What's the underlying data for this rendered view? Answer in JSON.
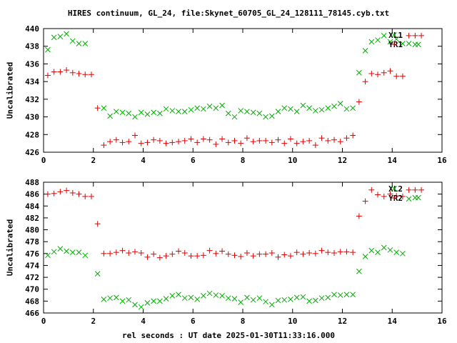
{
  "title": "HIRES continuum, GL_24, file:Skynet_60705_GL_24_128111_78145.cyb.txt",
  "xlabel": "rel seconds : UT date 2025-01-30T11:33:16.000",
  "colors": {
    "red": "#e00000",
    "green": "#00b000",
    "axis": "#000000"
  },
  "chart_data": [
    {
      "type": "scatter",
      "title": "HIRES continuum, GL_24, file:Skynet_60705_GL_24_128111_78145.cyb.txt",
      "xlabel": "",
      "ylabel": "Uncalibrated",
      "xlim": [
        0,
        16
      ],
      "ylim": [
        426,
        440
      ],
      "xticks": [
        0,
        2,
        4,
        6,
        8,
        10,
        12,
        14,
        16
      ],
      "yticks": [
        426,
        428,
        430,
        432,
        434,
        436,
        438,
        440
      ],
      "legend_position": "top-right",
      "series": [
        {
          "name": "XL1",
          "marker": "x",
          "color": "#00b000",
          "x": [
            0.17,
            0.42,
            0.67,
            0.92,
            1.17,
            1.42,
            1.67,
            2.42,
            2.67,
            2.92,
            3.17,
            3.42,
            3.67,
            3.92,
            4.17,
            4.42,
            4.67,
            4.92,
            5.17,
            5.42,
            5.67,
            5.92,
            6.17,
            6.42,
            6.67,
            6.92,
            7.17,
            7.42,
            7.67,
            7.92,
            8.17,
            8.42,
            8.67,
            8.92,
            9.17,
            9.42,
            9.67,
            9.92,
            10.17,
            10.42,
            10.67,
            10.92,
            11.17,
            11.42,
            11.67,
            11.92,
            12.17,
            12.42,
            12.67,
            12.92,
            13.17,
            13.42,
            13.67,
            13.92,
            14.17,
            14.42,
            14.67,
            14.92,
            15.05
          ],
          "y": [
            437.6,
            439.0,
            439.1,
            439.4,
            438.6,
            438.3,
            438.3,
            431.0,
            430.1,
            430.6,
            430.5,
            430.4,
            430.0,
            430.5,
            430.3,
            430.5,
            430.4,
            430.9,
            430.7,
            430.6,
            430.6,
            430.8,
            431.0,
            430.9,
            431.2,
            431.0,
            431.3,
            430.4,
            430.0,
            430.7,
            430.6,
            430.5,
            430.4,
            430.0,
            430.1,
            430.6,
            431.0,
            430.9,
            430.6,
            431.3,
            431.0,
            430.7,
            430.8,
            431.0,
            431.2,
            431.5,
            430.9,
            431.0,
            435.0,
            437.5,
            438.5,
            438.7,
            439.2,
            438.5,
            438.8,
            438.3,
            438.3,
            438.2,
            438.2
          ]
        },
        {
          "name": "YR1",
          "marker": "+",
          "color": "#e00000",
          "x": [
            0.17,
            0.42,
            0.67,
            0.92,
            1.17,
            1.42,
            1.67,
            1.92,
            2.17,
            2.42,
            2.67,
            2.92,
            3.17,
            3.42,
            3.67,
            3.92,
            4.17,
            4.42,
            4.67,
            4.92,
            5.17,
            5.42,
            5.67,
            5.92,
            6.17,
            6.42,
            6.67,
            6.92,
            7.17,
            7.42,
            7.67,
            7.92,
            8.17,
            8.42,
            8.67,
            8.92,
            9.17,
            9.42,
            9.67,
            9.92,
            10.17,
            10.42,
            10.67,
            10.92,
            11.17,
            11.42,
            11.67,
            11.92,
            12.17,
            12.42,
            12.67,
            12.92,
            13.17,
            13.42,
            13.67,
            13.92,
            14.17,
            14.42,
            14.67,
            14.92,
            15.17
          ],
          "y": [
            434.7,
            435.1,
            435.1,
            435.3,
            435.0,
            434.9,
            434.8,
            434.8,
            431.0,
            426.8,
            427.2,
            427.4,
            427.1,
            427.2,
            427.9,
            427.0,
            427.1,
            427.4,
            427.3,
            427.0,
            427.1,
            427.2,
            427.3,
            427.5,
            427.1,
            427.5,
            427.4,
            426.9,
            427.5,
            427.1,
            427.3,
            427.0,
            427.6,
            427.2,
            427.3,
            427.3,
            427.1,
            427.4,
            427.0,
            427.5,
            427.0,
            427.2,
            427.3,
            426.8,
            427.6,
            427.3,
            427.4,
            427.2,
            427.6,
            427.9,
            431.7,
            434.0,
            434.9,
            434.8,
            435.0,
            435.2,
            434.6,
            434.6,
            439.2,
            439.2,
            439.2
          ]
        }
      ]
    },
    {
      "type": "scatter",
      "title": "",
      "xlabel": "rel seconds : UT date 2025-01-30T11:33:16.000",
      "ylabel": "Uncalibrated",
      "xlim": [
        0,
        16
      ],
      "ylim": [
        466,
        488
      ],
      "xticks": [
        0,
        2,
        4,
        6,
        8,
        10,
        12,
        14,
        16
      ],
      "yticks": [
        466,
        468,
        470,
        472,
        474,
        476,
        478,
        480,
        482,
        484,
        486,
        488
      ],
      "legend_position": "top-right",
      "series": [
        {
          "name": "XL2",
          "marker": "x",
          "color": "#00b000",
          "x": [
            0.17,
            0.42,
            0.67,
            0.92,
            1.17,
            1.42,
            1.67,
            2.17,
            2.42,
            2.67,
            2.92,
            3.17,
            3.42,
            3.67,
            3.92,
            4.17,
            4.42,
            4.67,
            4.92,
            5.17,
            5.42,
            5.67,
            5.92,
            6.17,
            6.42,
            6.67,
            6.92,
            7.17,
            7.42,
            7.67,
            7.92,
            8.17,
            8.42,
            8.67,
            8.92,
            9.17,
            9.42,
            9.67,
            9.92,
            10.17,
            10.42,
            10.67,
            10.92,
            11.17,
            11.42,
            11.67,
            11.92,
            12.17,
            12.42,
            12.67,
            12.92,
            13.17,
            13.42,
            13.67,
            13.92,
            14.17,
            14.42,
            14.67,
            14.92,
            15.05
          ],
          "y": [
            475.7,
            476.3,
            476.8,
            476.4,
            476.2,
            476.2,
            475.7,
            472.6,
            468.3,
            468.5,
            468.6,
            468.0,
            468.2,
            467.4,
            467.0,
            467.7,
            468.0,
            468.0,
            468.4,
            468.9,
            469.1,
            468.5,
            468.6,
            468.3,
            468.9,
            469.3,
            469.0,
            468.9,
            468.5,
            468.4,
            467.8,
            468.6,
            468.2,
            468.5,
            467.9,
            467.4,
            468.1,
            468.2,
            468.3,
            468.6,
            468.7,
            468.0,
            468.1,
            468.5,
            468.6,
            469.1,
            469.0,
            469.1,
            469.1,
            473.0,
            475.5,
            476.5,
            476.2,
            477.0,
            476.6,
            476.2,
            476.0,
            485.2,
            485.4,
            485.4
          ]
        },
        {
          "name": "YR2",
          "marker": "+",
          "color": "#e00000",
          "x": [
            0.17,
            0.42,
            0.67,
            0.92,
            1.17,
            1.42,
            1.67,
            1.92,
            2.17,
            2.42,
            2.67,
            2.92,
            3.17,
            3.42,
            3.67,
            3.92,
            4.17,
            4.42,
            4.67,
            4.92,
            5.17,
            5.42,
            5.67,
            5.92,
            6.17,
            6.42,
            6.67,
            6.92,
            7.17,
            7.42,
            7.67,
            7.92,
            8.17,
            8.42,
            8.67,
            8.92,
            9.17,
            9.42,
            9.67,
            9.92,
            10.17,
            10.42,
            10.67,
            10.92,
            11.17,
            11.42,
            11.67,
            11.92,
            12.17,
            12.42,
            12.67,
            12.92,
            13.17,
            13.42,
            13.67,
            13.92,
            14.17,
            14.42,
            14.67,
            14.92,
            15.17
          ],
          "y": [
            486.0,
            486.1,
            486.4,
            486.6,
            486.2,
            486.0,
            485.6,
            485.6,
            481.0,
            476.0,
            476.0,
            476.2,
            476.5,
            476.1,
            476.3,
            476.1,
            475.4,
            475.9,
            475.3,
            475.6,
            475.9,
            476.4,
            476.1,
            475.6,
            475.6,
            475.7,
            476.5,
            476.0,
            476.4,
            475.9,
            475.7,
            475.5,
            476.1,
            475.6,
            475.9,
            475.9,
            476.1,
            475.4,
            475.8,
            475.6,
            476.2,
            475.9,
            476.1,
            476.0,
            476.5,
            476.2,
            476.1,
            476.3,
            476.3,
            476.2,
            482.3,
            484.8,
            486.7,
            485.9,
            485.6,
            486.0,
            485.7,
            485.6,
            486.7,
            486.7,
            486.7
          ]
        }
      ]
    }
  ]
}
